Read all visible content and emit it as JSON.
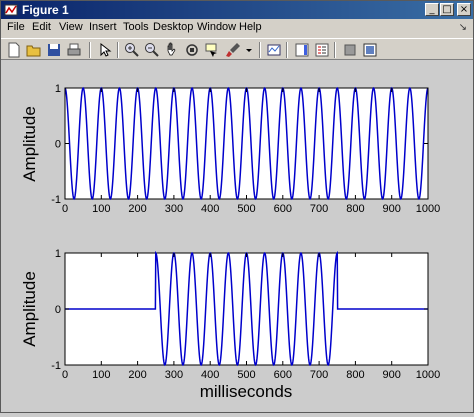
{
  "window": {
    "title": "Figure 1"
  },
  "title_buttons": {
    "minimize": "_",
    "maximize": "□",
    "close": "×"
  },
  "menubar": {
    "items": [
      "File",
      "Edit",
      "View",
      "Insert",
      "Tools",
      "Desktop",
      "Window",
      "Help"
    ],
    "dock_glyph": "↘"
  },
  "toolbar": {
    "icons": [
      "new-figure-icon",
      "open-file-icon",
      "save-icon",
      "print-icon",
      "edit-plot-arrow-icon",
      "zoom-in-icon",
      "zoom-out-icon",
      "pan-hand-icon",
      "rotate-3d-icon",
      "data-cursor-icon",
      "brush-icon",
      "brush-dropdown-icon",
      "link-plot-icon",
      "insert-colorbar-icon",
      "insert-legend-icon",
      "hide-plot-tools-icon",
      "show-plot-tools-icon"
    ]
  },
  "colors": {
    "line": "#0000cc",
    "axes_bg": "#ffffff",
    "figure_bg": "#cccccc"
  },
  "chart_data": [
    {
      "type": "line",
      "title": "",
      "xlabel": "",
      "ylabel": "Amplitude",
      "xlim": [
        0,
        1000
      ],
      "ylim": [
        -1,
        1
      ],
      "xticks": [
        "0",
        "100",
        "200",
        "300",
        "400",
        "500",
        "600",
        "700",
        "800",
        "900",
        "1000"
      ],
      "yticks": [
        "-1",
        "0",
        "1"
      ],
      "series": [
        {
          "frequency_hz": 20,
          "start_ms": 0,
          "end_ms": 1000,
          "amplitude": 1
        }
      ]
    },
    {
      "type": "line",
      "title": "",
      "xlabel": "milliseconds",
      "ylabel": "Amplitude",
      "xlim": [
        0,
        1000
      ],
      "ylim": [
        -1,
        1
      ],
      "xticks": [
        "0",
        "100",
        "200",
        "300",
        "400",
        "500",
        "600",
        "700",
        "800",
        "900",
        "1000"
      ],
      "yticks": [
        "-1",
        "0",
        "1"
      ],
      "series": [
        {
          "frequency_hz": 20,
          "start_ms": 250,
          "end_ms": 750,
          "amplitude": 1
        }
      ]
    }
  ]
}
